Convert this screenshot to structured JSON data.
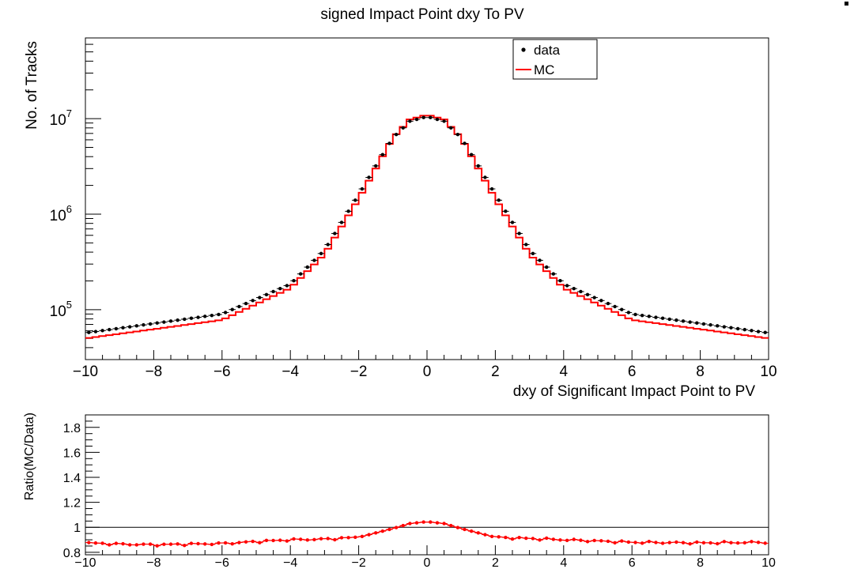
{
  "chart_data": [
    {
      "type": "line",
      "title": "signed Impact Point dxy To PV",
      "xlabel": "dxy of Significant Impact Point to PV",
      "ylabel": "No. of Tracks",
      "xlim": [
        -10,
        10
      ],
      "ylim": [
        30000,
        70000000
      ],
      "yscale": "log",
      "grid": false,
      "legend_position": "top-center",
      "x_ticks": [
        "−10",
        "−8",
        "−6",
        "−4",
        "−2",
        "0",
        "2",
        "4",
        "6",
        "8",
        "10"
      ],
      "y_ticks": [
        {
          "base": "10",
          "exp": "5"
        },
        {
          "base": "10",
          "exp": "6"
        },
        {
          "base": "10",
          "exp": "7"
        }
      ],
      "series": [
        {
          "name": "data",
          "style": "markers",
          "color": "#000000",
          "x": [
            -10,
            -6,
            -4,
            -3,
            -2,
            -1.5,
            -1,
            -0.5,
            0,
            0.5,
            1,
            1.5,
            2,
            3,
            4,
            6,
            10
          ],
          "y": [
            57000,
            90000,
            185000,
            420000,
            1600000,
            3200000,
            6300000,
            9400000,
            10500000,
            9400000,
            6300000,
            3200000,
            1600000,
            420000,
            185000,
            90000,
            57000
          ]
        },
        {
          "name": "MC",
          "style": "step",
          "color": "#ff0000",
          "x": [
            -10,
            -6,
            -4,
            -3,
            -2,
            -1.5,
            -1,
            -0.5,
            0,
            0.5,
            1,
            1.5,
            2,
            3,
            4,
            6,
            10
          ],
          "y": [
            50000,
            78000,
            168000,
            380000,
            1450000,
            3000000,
            6300000,
            9800000,
            11000000,
            9800000,
            6300000,
            3000000,
            1450000,
            380000,
            168000,
            78000,
            50000
          ]
        }
      ]
    },
    {
      "type": "scatter",
      "ylabel": "Ratio(MC/Data)",
      "xlim": [
        -10,
        10
      ],
      "ylim": [
        0.78,
        1.9
      ],
      "x_ticks": [
        "−10",
        "−8",
        "−6",
        "−4",
        "−2",
        "0",
        "2",
        "4",
        "6",
        "8",
        "10"
      ],
      "y_ticks": [
        "0.8",
        "1",
        "1.2",
        "1.4",
        "1.6",
        "1.8"
      ],
      "reference_line": 1.0,
      "series": [
        {
          "name": "",
          "color": "#ff0000",
          "x": [
            -10,
            -9,
            -8,
            -6,
            -4,
            -3,
            -2,
            -1,
            -0.5,
            0,
            0.5,
            1,
            2,
            4,
            6,
            8,
            10
          ],
          "y": [
            0.875,
            0.865,
            0.86,
            0.87,
            0.9,
            0.905,
            0.92,
            0.99,
            1.03,
            1.045,
            1.03,
            0.99,
            0.92,
            0.9,
            0.88,
            0.875,
            0.88
          ]
        }
      ]
    }
  ]
}
